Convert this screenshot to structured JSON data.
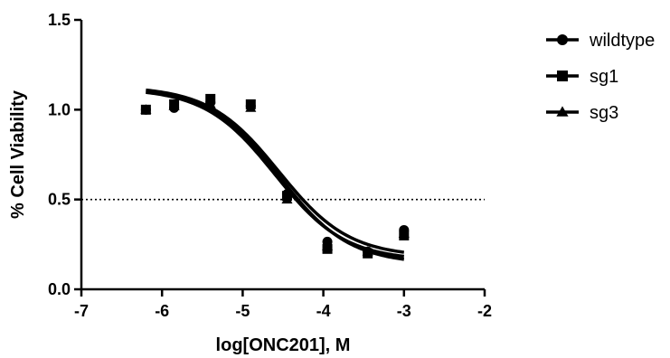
{
  "chart_data": {
    "type": "scatter",
    "title": "",
    "xlabel": "log[ONC201], M",
    "ylabel": "% Cell Viability",
    "xlim": [
      -7,
      -2
    ],
    "ylim": [
      0,
      1.5
    ],
    "x_ticks": [
      -7,
      -6,
      -5,
      -4,
      -3,
      -2
    ],
    "x_tick_labels": [
      "-7",
      "-6",
      "-5",
      "-4",
      "-3",
      "-2"
    ],
    "y_ticks": [
      0,
      0.5,
      1.0,
      1.5
    ],
    "y_tick_labels": [
      "0.0",
      "0.5",
      "1.0",
      "1.5"
    ],
    "grid": false,
    "legend": "right",
    "reference_line": {
      "y": 0.5,
      "style": "dotted"
    },
    "series": [
      {
        "name": "wildtype",
        "marker": "circle",
        "x": [
          -6.2,
          -5.85,
          -5.4,
          -4.9,
          -4.45,
          -3.95,
          -3.45,
          -3.0
        ],
        "y": [
          1.0,
          1.01,
          1.04,
          1.02,
          0.53,
          0.265,
          0.21,
          0.33
        ],
        "fit": {
          "top": 1.13,
          "bottom": 0.18,
          "log_ic50": -4.55,
          "hill": -1.0
        }
      },
      {
        "name": "sg1",
        "marker": "square",
        "x": [
          -6.2,
          -5.85,
          -5.4,
          -4.9,
          -4.45,
          -3.95,
          -3.45,
          -3.0
        ],
        "y": [
          1.0,
          1.03,
          1.06,
          1.03,
          0.52,
          0.225,
          0.2,
          0.3
        ],
        "fit": {
          "top": 1.12,
          "bottom": 0.14,
          "log_ic50": -4.55,
          "hill": -1.0
        }
      },
      {
        "name": "sg3",
        "marker": "triangle",
        "x": [
          -6.2,
          -5.85,
          -5.4,
          -4.9,
          -4.45,
          -3.95,
          -3.45,
          -3.0
        ],
        "y": [
          1.0,
          1.02,
          1.03,
          1.01,
          0.5,
          0.24,
          0.21,
          0.31
        ],
        "fit": {
          "top": 1.12,
          "bottom": 0.16,
          "log_ic50": -4.6,
          "hill": -1.0
        }
      }
    ]
  }
}
